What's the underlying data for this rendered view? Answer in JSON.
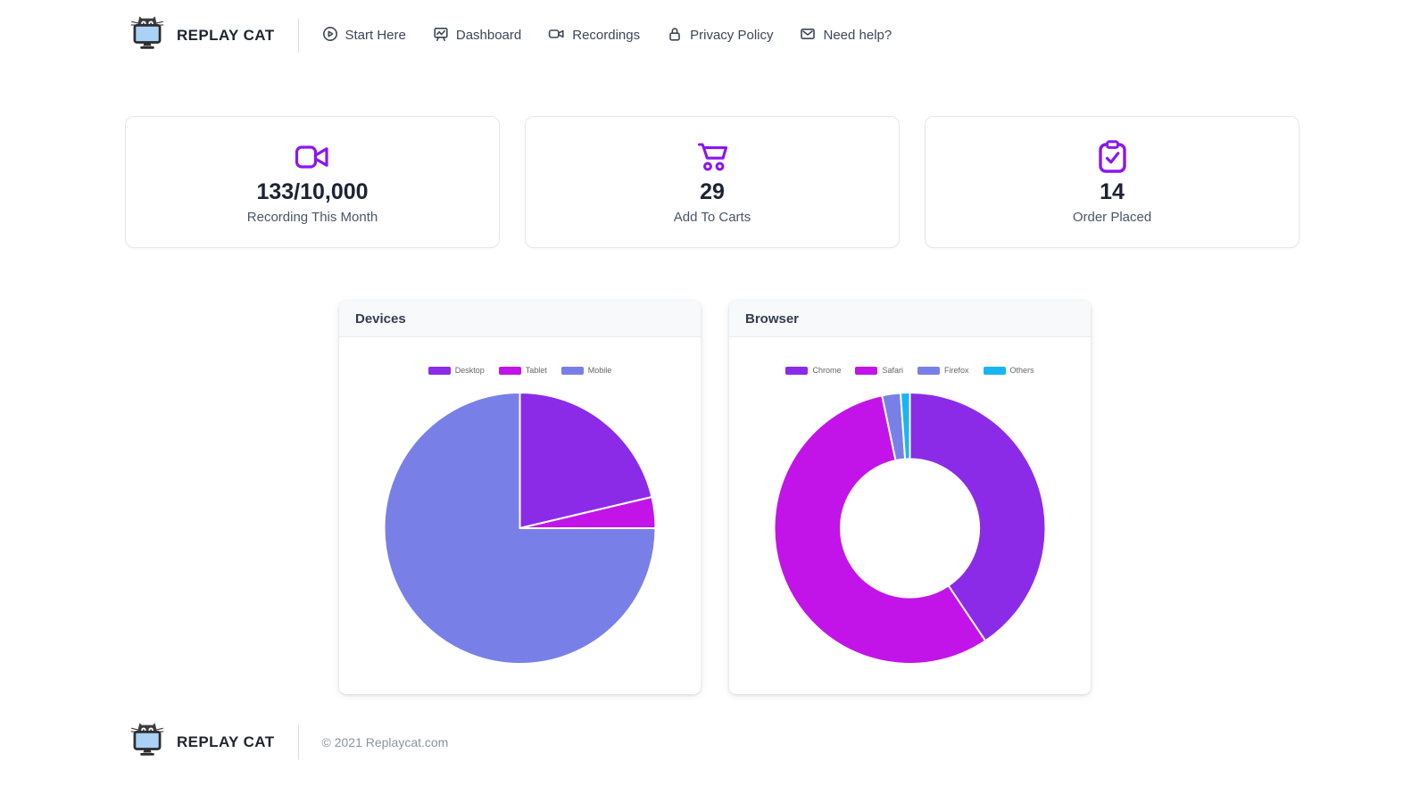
{
  "brand": {
    "name": "REPLAY CAT",
    "logo_icon": "cat-on-monitor-icon"
  },
  "nav": {
    "items": [
      {
        "label": "Start Here",
        "icon": "play-circle-icon"
      },
      {
        "label": "Dashboard",
        "icon": "presentation-chart-icon"
      },
      {
        "label": "Recordings",
        "icon": "video-camera-icon"
      },
      {
        "label": "Privacy Policy",
        "icon": "lock-icon"
      },
      {
        "label": "Need help?",
        "icon": "envelope-icon"
      }
    ]
  },
  "stats": [
    {
      "value": "133/10,000",
      "label": "Recording This Month",
      "icon": "video-camera-icon"
    },
    {
      "value": "29",
      "label": "Add To Carts",
      "icon": "shopping-cart-icon"
    },
    {
      "value": "14",
      "label": "Order Placed",
      "icon": "clipboard-check-icon"
    }
  ],
  "colors": {
    "accent_purple": "#8a16f0",
    "violet": "#8b2be8",
    "magenta": "#c214e8",
    "periwinkle": "#7880e8",
    "cyan": "#18b5f2"
  },
  "chart_data": [
    {
      "type": "pie",
      "title": "Devices",
      "categories": [
        "Desktop",
        "Tablet",
        "Mobile"
      ],
      "values": [
        21.3,
        3.7,
        75.0
      ],
      "unit": "percent",
      "colors": [
        "#8b2be8",
        "#c214e8",
        "#7880e8"
      ],
      "legend_position": "top",
      "start_angle_deg": 0,
      "direction": "clockwise",
      "cutout": 0
    },
    {
      "type": "donut",
      "title": "Browser",
      "categories": [
        "Chrome",
        "Safari",
        "Firefox",
        "Others"
      ],
      "values": [
        40.6,
        56.1,
        2.2,
        1.1
      ],
      "unit": "percent",
      "colors": [
        "#8b2be8",
        "#c214e8",
        "#7880e8",
        "#18b5f2"
      ],
      "legend_position": "top",
      "start_angle_deg": 0,
      "direction": "clockwise",
      "cutout": 0.51
    }
  ],
  "footer": {
    "brand": "REPLAY CAT",
    "copyright": "© 2021 Replaycat.com"
  }
}
